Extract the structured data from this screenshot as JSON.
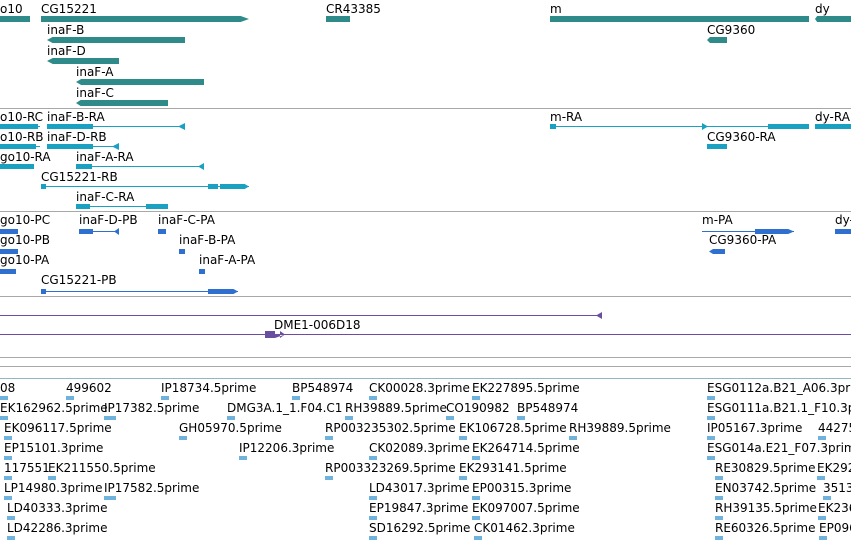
{
  "colors": {
    "gene": "#2f8a8a",
    "transcript": "#1aa0c0",
    "protein": "#2e6fd0",
    "clone": "#6a4fa0",
    "est": "#6fb2dc",
    "separator": "#a8a8a8"
  },
  "genes": [
    "o10",
    "CG15221",
    "CR43385",
    "m",
    "dy",
    "inaF-B",
    "CG9360",
    "inaF-D",
    "inaF-A",
    "inaF-C"
  ],
  "transcripts": [
    "o10-RC",
    "inaF-B-RA",
    "m-RA",
    "dy-RA",
    "o10-RB",
    "inaF-D-RB",
    "CG9360-RA",
    "go10-RA",
    "inaF-A-RA",
    "CG15221-RB",
    "inaF-C-RA"
  ],
  "proteins": [
    "go10-PC",
    "inaF-D-PB",
    "inaF-C-PA",
    "m-PA",
    "dy-",
    "go10-PB",
    "inaF-B-PA",
    "CG9360-PA",
    "go10-PA",
    "inaF-A-PA",
    "CG15221-PB"
  ],
  "clones": [
    "DME1-006D18"
  ],
  "ests": [
    [
      "08",
      "499602",
      "IP18734.5prime",
      "BP548974",
      "CK00028.3prime",
      "EK227895.5prime",
      "ESG0112a.B21_A06.3pr"
    ],
    [
      "EK162962.5prime",
      "IP17382.5prime",
      "DMG3A.1_1.F04.C1",
      "RH39889.5prime",
      "CO190982",
      "BP548974",
      "ESG0111a.B21.1_F10.3p"
    ],
    [
      "EK096117.5prime",
      "GH05970.5prime",
      "RP003235302.5prime",
      "EK106728.5prime",
      "RH39889.5prime",
      "IP05167.3prime",
      "44275"
    ],
    [
      "EP15101.3prime",
      "IP12206.3prime",
      "CK02089.3prime",
      "EK264714.5prime",
      "ESG014a.E21_F07.3prime"
    ],
    [
      "117551",
      "EK211550.5prime",
      "RP003323269.5prime",
      "EK293141.5prime",
      "RE30829.5prime",
      "EK292"
    ],
    [
      "LP14980.3prime",
      "IP17582.5prime",
      "LD43017.3prime",
      "EP00315.3prime",
      "EN03742.5prime",
      "3513"
    ],
    [
      "LD40333.3prime",
      "EP19847.3prime",
      "EK097007.5prime",
      "RH39135.5prime",
      "EK236"
    ],
    [
      "LD42286.3prime",
      "SD16292.5prime",
      "CK01462.3prime",
      "RE60326.5prime",
      "EP096"
    ]
  ]
}
